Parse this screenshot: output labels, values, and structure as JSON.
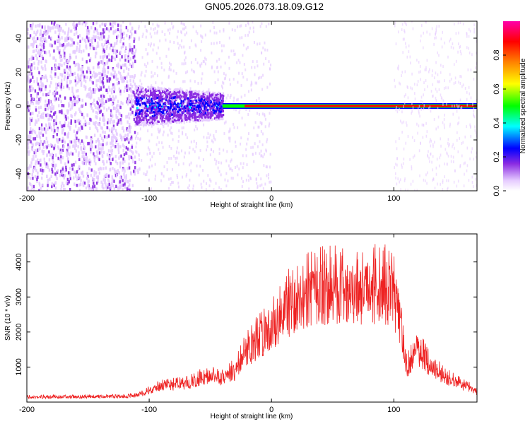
{
  "title": "GN05.2026.073.18.09.G12",
  "chart_data": [
    {
      "type": "heatmap",
      "xlabel": "Height of straight line (km)",
      "ylabel": "Frequency (Hz)",
      "colorbar_label": "Normalized spectral amplitude",
      "xlim": [
        -200,
        168
      ],
      "ylim": [
        -50,
        50
      ],
      "x_ticks": [
        -200,
        -100,
        0,
        100
      ],
      "y_ticks": [
        -40,
        -20,
        0,
        20,
        40
      ],
      "colorbar_ticks": [
        "0.0",
        "0.2",
        "0.4",
        "0.6",
        "0.8"
      ],
      "colorbar_range": [
        0,
        1
      ],
      "colormap": [
        "#ffffff",
        "#e6ccff",
        "#8a2be2",
        "#0000ff",
        "#00ffff",
        "#00ff00",
        "#ffff00",
        "#ff8000",
        "#ff0000",
        "#ff00aa"
      ],
      "description_points": {
        "noise_region_x": [
          -200,
          -112
        ],
        "spread_region_x": [
          -112,
          -40
        ],
        "narrow_line_x": [
          -40,
          168
        ],
        "line_frequency_hz": 0
      }
    },
    {
      "type": "line",
      "xlabel": "Height of straight line (km)",
      "ylabel": "SNR (10 * v/v)",
      "xlim": [
        -200,
        168
      ],
      "ylim": [
        0,
        4800
      ],
      "x_ticks": [
        -200,
        -100,
        0,
        100
      ],
      "y_ticks": [
        1000,
        2000,
        3000,
        4000
      ],
      "color": "#ee2222",
      "envelope": {
        "x": [
          -200,
          -180,
          -160,
          -140,
          -120,
          -112,
          -100,
          -90,
          -80,
          -70,
          -60,
          -50,
          -40,
          -30,
          -20,
          -10,
          0,
          10,
          20,
          30,
          40,
          50,
          60,
          70,
          80,
          90,
          100,
          105,
          110,
          120,
          130,
          140,
          150,
          160,
          168
        ],
        "y": [
          180,
          180,
          190,
          190,
          200,
          230,
          400,
          550,
          600,
          650,
          800,
          900,
          800,
          1100,
          1800,
          2200,
          2700,
          3200,
          3600,
          3850,
          3950,
          3950,
          4000,
          4000,
          3950,
          3950,
          3800,
          3000,
          1200,
          1800,
          1300,
          900,
          700,
          550,
          350
        ]
      }
    }
  ]
}
